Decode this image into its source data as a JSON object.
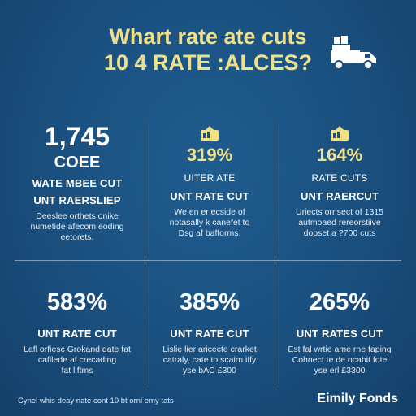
{
  "header": {
    "title_line1": "Whart rate ate cuts",
    "title_line2": "10 4 RATE :ALCES?",
    "icon": "truck-icon",
    "accent_color": "#f1e08a"
  },
  "grid": {
    "top": [
      {
        "value": "1,745",
        "value2": "COEE",
        "label1": "WATE MBEE CUT",
        "label2": "UNT RAERSLIEP",
        "body": [
          "Deeslee orthets onike",
          "numetide afecom eoding",
          "eetorets."
        ]
      },
      {
        "icon": "chart-icon",
        "value": "319%",
        "label1": "UITER ATE",
        "label2": "UNT RATE CUT",
        "body": [
          "We en er ecside of",
          "notasally k canefet to",
          "Dsg af bafforms."
        ]
      },
      {
        "icon": "chart-icon",
        "value": "164%",
        "label1": "RATE CUTS",
        "label2": "UNT RAERCUT",
        "body": [
          "Uriects orrisect of 1315",
          "autmoaed rereorstiive",
          "dopset a ?700 cuts"
        ]
      }
    ],
    "bottom": [
      {
        "value": "583%",
        "label1": "UNT RATE CUT",
        "body": [
          "Lafl orfiesc Grokand date fat",
          "cafilede af crecading",
          "fat liftms"
        ]
      },
      {
        "value": "385%",
        "label1": "UNT RATE CUT",
        "body": [
          "Lislie lier aricecte crarket",
          "catraly, cate to scairn iffy",
          "yse bAC £300"
        ]
      },
      {
        "value": "265%",
        "label1": "UNT RATES CUT",
        "body": [
          "Est fal wrtie ame rne faping",
          "Cohnect te de ocabit fote",
          "yse erl £3300"
        ]
      }
    ]
  },
  "footer": {
    "note": "Cynel whis deay nate cont 10 bt ornl emy tats",
    "brand": "Eimily Fonds"
  }
}
